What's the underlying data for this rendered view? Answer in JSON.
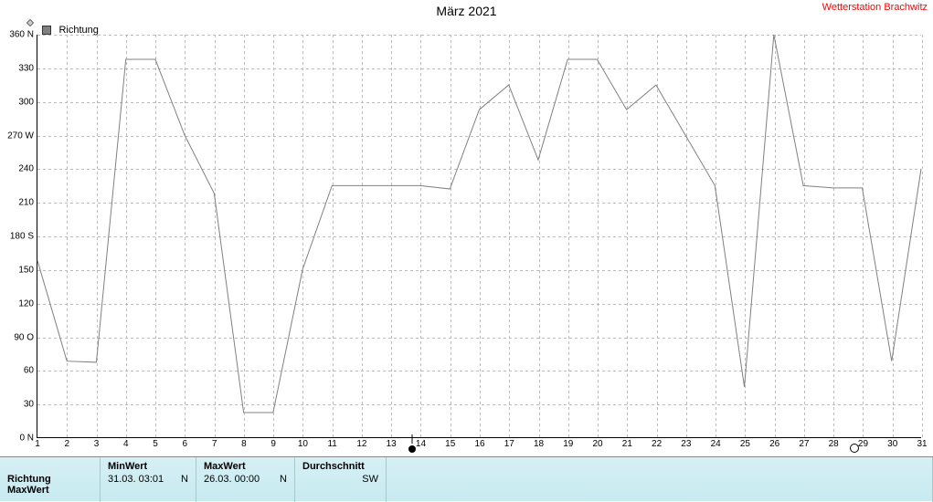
{
  "title": "März 2021",
  "brand": "Wetterstation Brachwitz",
  "legend": {
    "label": "Richtung",
    "swatch_color": "#808080"
  },
  "chart": {
    "type": "line",
    "background": "#ffffff",
    "grid_color": "#bbbbbb",
    "line_color": "#808080",
    "line_width": 1,
    "x": {
      "min": 1,
      "max": 31,
      "ticks": [
        1,
        2,
        3,
        4,
        5,
        6,
        7,
        8,
        9,
        10,
        11,
        12,
        13,
        14,
        15,
        16,
        17,
        18,
        19,
        20,
        21,
        22,
        23,
        24,
        25,
        26,
        27,
        28,
        29,
        30,
        31
      ]
    },
    "y": {
      "min": 0,
      "max": 360,
      "ticks": [
        {
          "v": 0,
          "label": "0   N"
        },
        {
          "v": 30,
          "label": "30"
        },
        {
          "v": 60,
          "label": "60"
        },
        {
          "v": 90,
          "label": "90 O"
        },
        {
          "v": 120,
          "label": "120"
        },
        {
          "v": 150,
          "label": "150"
        },
        {
          "v": 180,
          "label": "180 S"
        },
        {
          "v": 210,
          "label": "210"
        },
        {
          "v": 240,
          "label": "240"
        },
        {
          "v": 270,
          "label": "270 W"
        },
        {
          "v": 300,
          "label": "300"
        },
        {
          "v": 330,
          "label": "330"
        },
        {
          "v": 360,
          "label": "360 N"
        }
      ]
    },
    "values": [
      158,
      68,
      67,
      338,
      338,
      270,
      218,
      22,
      22,
      150,
      225,
      225,
      225,
      225,
      222,
      293,
      315,
      248,
      338,
      338,
      293,
      315,
      270,
      225,
      45,
      360,
      225,
      223,
      223,
      68,
      240
    ],
    "min_marker_x": 13.7,
    "max_marker_x": 28.7
  },
  "stats": {
    "row_label": "Richtung",
    "row_label2": "MaxWert",
    "min": {
      "head": "MinWert",
      "when": "31.03.  03:01",
      "dir": "N"
    },
    "max": {
      "head": "MaxWert",
      "when": "26.03.  00:00",
      "dir": "N"
    },
    "avg": {
      "head": "Durchschnitt",
      "dir": "SW"
    }
  },
  "fonts": {
    "title_size": 14,
    "tick_size": 10,
    "legend_size": 11
  }
}
